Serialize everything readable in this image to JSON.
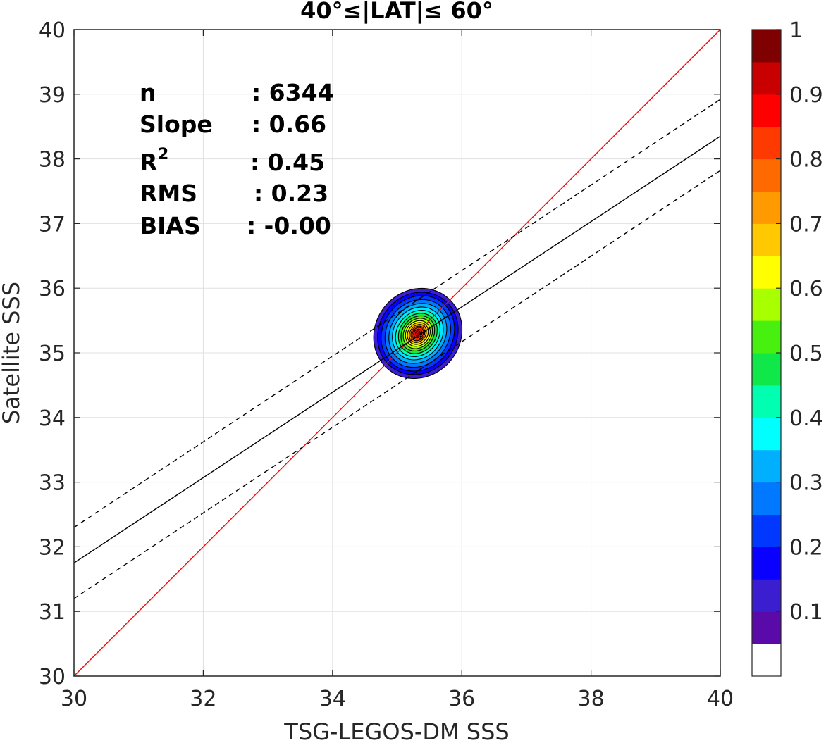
{
  "chart_data": {
    "type": "contour",
    "title": "40°≤|LAT|≤ 60°",
    "xlabel": "TSG-LEGOS-DM SSS",
    "ylabel": "Satellite SSS",
    "xlim": [
      30,
      40
    ],
    "ylim": [
      30,
      40
    ],
    "xticks": [
      "30",
      "32",
      "34",
      "36",
      "38",
      "40"
    ],
    "yticks": [
      "30",
      "31",
      "32",
      "33",
      "34",
      "35",
      "36",
      "37",
      "38",
      "39",
      "40"
    ],
    "grid": true,
    "stats": {
      "n_label": "n",
      "n_value": ": 6344",
      "slope_label": "Slope",
      "slope_value": ": 0.66",
      "r2_label": "R",
      "r2_sup": "2",
      "r2_value": ": 0.45",
      "rms_label": "RMS",
      "rms_value": ": 0.23",
      "bias_label": "BIAS",
      "bias_value": ": -0.00"
    },
    "lines": {
      "identity": {
        "color": "#ff0000",
        "points": [
          [
            30,
            30
          ],
          [
            40,
            40
          ]
        ]
      },
      "fit": {
        "color": "#000000",
        "points": [
          [
            30,
            31.75
          ],
          [
            40,
            38.35
          ]
        ]
      },
      "fit_upper": {
        "color": "#000000",
        "style": "dashed",
        "points": [
          [
            30,
            32.3
          ],
          [
            40,
            38.92
          ]
        ]
      },
      "fit_lower": {
        "color": "#000000",
        "style": "dashed",
        "points": [
          [
            30,
            31.2
          ],
          [
            40,
            37.82
          ]
        ]
      }
    },
    "density": {
      "center": [
        35.32,
        35.3
      ],
      "levels": [
        {
          "level": 0.05,
          "rx": 0.66,
          "ry": 0.72,
          "color": "#3a1ecf"
        },
        {
          "level": 0.1,
          "rx": 0.6,
          "ry": 0.66,
          "color": "#0a00ff"
        },
        {
          "level": 0.15,
          "rx": 0.54,
          "ry": 0.61,
          "color": "#0038ff"
        },
        {
          "level": 0.2,
          "rx": 0.48,
          "ry": 0.55,
          "color": "#0078ff"
        },
        {
          "level": 0.25,
          "rx": 0.42,
          "ry": 0.49,
          "color": "#00b0ff"
        },
        {
          "level": 0.3,
          "rx": 0.37,
          "ry": 0.43,
          "color": "#00e8ff"
        },
        {
          "level": 0.35,
          "rx": 0.32,
          "ry": 0.38,
          "color": "#00ffb0"
        },
        {
          "level": 0.4,
          "rx": 0.28,
          "ry": 0.33,
          "color": "#10e84a"
        },
        {
          "level": 0.45,
          "rx": 0.24,
          "ry": 0.29,
          "color": "#48f010"
        },
        {
          "level": 0.5,
          "rx": 0.21,
          "ry": 0.25,
          "color": "#a8ff00"
        },
        {
          "level": 0.55,
          "rx": 0.18,
          "ry": 0.21,
          "color": "#ffff00"
        },
        {
          "level": 0.6,
          "rx": 0.15,
          "ry": 0.18,
          "color": "#ffc800"
        },
        {
          "level": 0.65,
          "rx": 0.12,
          "ry": 0.15,
          "color": "#ff9a00"
        },
        {
          "level": 0.7,
          "rx": 0.1,
          "ry": 0.12,
          "color": "#ff6a00"
        },
        {
          "level": 0.75,
          "rx": 0.08,
          "ry": 0.1,
          "color": "#ff3a00"
        },
        {
          "level": 0.8,
          "rx": 0.06,
          "ry": 0.07,
          "color": "#e01010"
        },
        {
          "level": 0.9,
          "rx": 0.035,
          "ry": 0.04,
          "color": "#a00000"
        }
      ]
    },
    "colorbar": {
      "min": 0,
      "max": 1,
      "tick_values": [
        0.1,
        0.2,
        0.3,
        0.4,
        0.5,
        0.6,
        0.7,
        0.8,
        0.9,
        1
      ],
      "tick_labels": [
        "0.1",
        "0.2",
        "0.3",
        "0.4",
        "0.5",
        "0.6",
        "0.7",
        "0.8",
        "0.9",
        "1"
      ],
      "colors": [
        "#ffffff",
        "#5a0aa8",
        "#3a1ecf",
        "#0a00ff",
        "#0038ff",
        "#0078ff",
        "#00b0ff",
        "#00ffff",
        "#00ffb0",
        "#10e84a",
        "#48f010",
        "#a8ff00",
        "#ffff00",
        "#ffc800",
        "#ff9a00",
        "#ff6a00",
        "#ff3a00",
        "#ff0000",
        "#c80000",
        "#7f0000"
      ]
    }
  }
}
